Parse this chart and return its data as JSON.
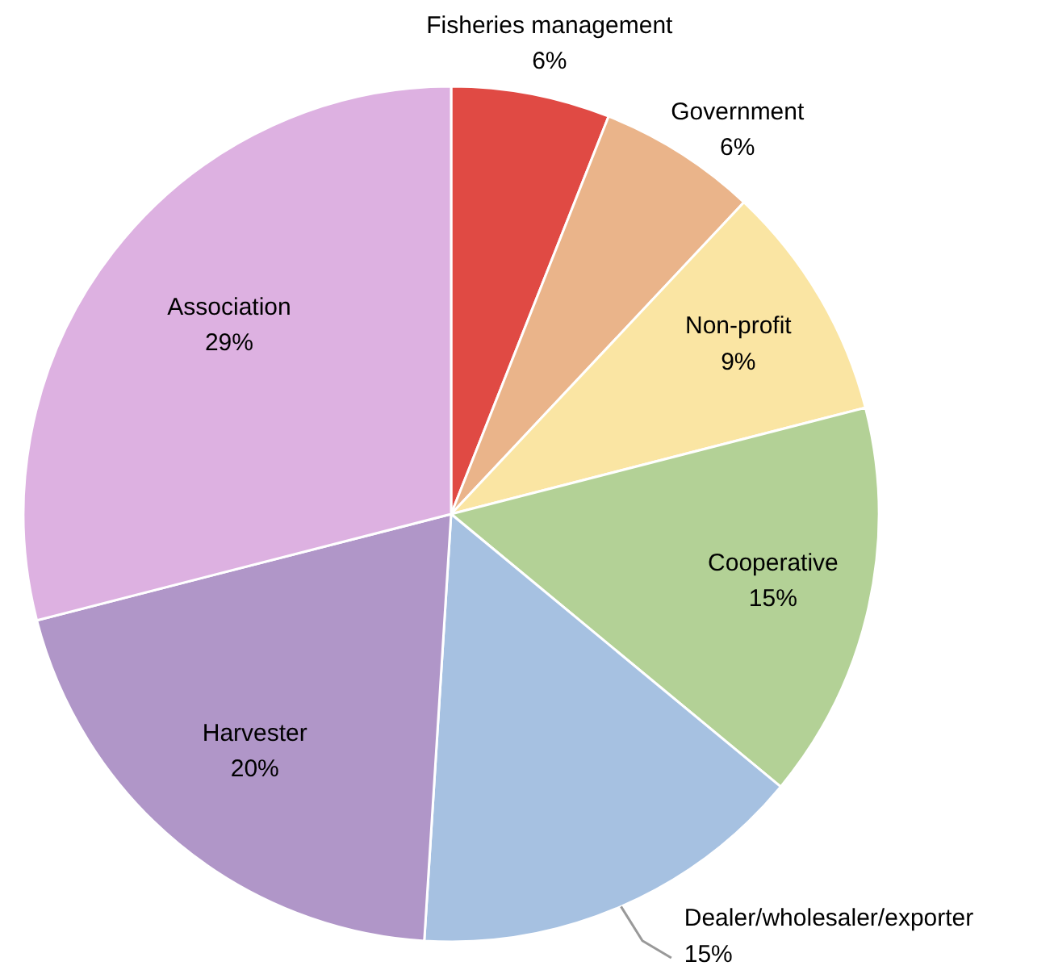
{
  "chart_data": {
    "type": "pie",
    "categories": [
      "Fisheries management",
      "Government",
      "Non-profit",
      "Cooperative",
      "Dealer/wholesaler/exporter",
      "Harvester",
      "Association"
    ],
    "values": [
      6,
      6,
      9,
      15,
      15,
      20,
      29
    ],
    "value_labels": [
      "6%",
      "6%",
      "9%",
      "15%",
      "15%",
      "20%",
      "29%"
    ],
    "colors": [
      "#e04a44",
      "#eab48a",
      "#fae5a3",
      "#b3d196",
      "#a6c1e1",
      "#b096c8",
      "#ddb1e1"
    ]
  }
}
